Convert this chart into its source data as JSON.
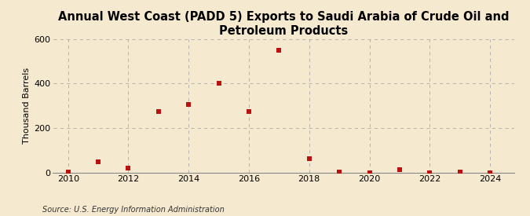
{
  "title": "Annual West Coast (PADD 5) Exports to Saudi Arabia of Crude Oil and Petroleum Products",
  "ylabel": "Thousand Barrels",
  "source": "Source: U.S. Energy Information Administration",
  "years": [
    2010,
    2011,
    2012,
    2013,
    2014,
    2015,
    2016,
    2017,
    2018,
    2019,
    2020,
    2021,
    2022,
    2023,
    2024
  ],
  "values": [
    2,
    50,
    20,
    275,
    305,
    400,
    275,
    550,
    65,
    2,
    1,
    15,
    1,
    5,
    1
  ],
  "marker_color": "#bb1111",
  "marker_size": 5,
  "background_color": "#f5e9d0",
  "grid_color": "#aaaaaa",
  "ylim": [
    0,
    600
  ],
  "yticks": [
    0,
    200,
    400,
    600
  ],
  "xlim": [
    2009.5,
    2024.8
  ],
  "xticks": [
    2010,
    2012,
    2014,
    2016,
    2018,
    2020,
    2022,
    2024
  ],
  "title_fontsize": 10.5,
  "ylabel_fontsize": 8,
  "tick_fontsize": 8,
  "source_fontsize": 7
}
